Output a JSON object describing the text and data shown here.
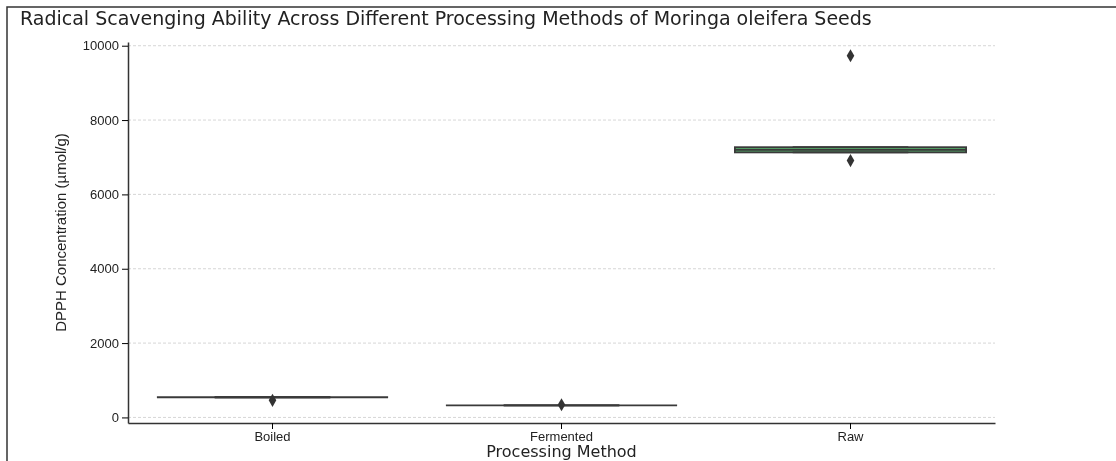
{
  "chart_data": {
    "type": "box",
    "title": "Radical Scavenging Ability Across Different Processing Methods of Moringa oleifera Seeds",
    "xlabel": "Processing Method",
    "ylabel": "DPPH Concentration (µmol/g)",
    "categories": [
      "Boiled",
      "Fermented",
      "Raw"
    ],
    "colors": [
      null,
      null,
      "#55a868"
    ],
    "boxes": [
      {
        "low": 543,
        "q1": 543,
        "median": 543,
        "q3": 543,
        "high": 543,
        "outliers": [
          460
        ]
      },
      {
        "low": 325,
        "q1": 325,
        "median": 325,
        "q3": 325,
        "high": 325,
        "outliers": [
          340
        ]
      },
      {
        "low": 7130,
        "q1": 7130,
        "median": 7200,
        "q3": 7270,
        "high": 7270,
        "outliers": [
          6910,
          9730
        ]
      }
    ],
    "ylim": [
      -150,
      10100
    ],
    "yticks": [
      0,
      2000,
      4000,
      6000,
      8000,
      10000
    ],
    "grid": "y",
    "marker": "diamond"
  }
}
